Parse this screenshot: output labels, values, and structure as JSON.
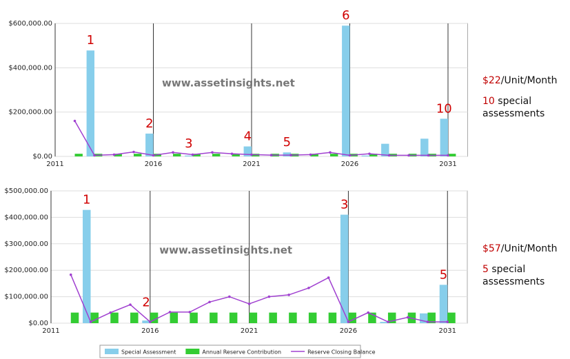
{
  "chart_data": [
    {
      "type": "bar_line",
      "x": [
        2012,
        2013,
        2014,
        2015,
        2016,
        2017,
        2018,
        2019,
        2020,
        2021,
        2022,
        2023,
        2024,
        2025,
        2026,
        2027,
        2028,
        2029,
        2030,
        2031
      ],
      "xlim": [
        2011,
        2032
      ],
      "xticks": [
        2011,
        2016,
        2021,
        2026,
        2031
      ],
      "ylim": [
        0,
        600000
      ],
      "yticks": [
        {
          "value": 0,
          "label": "$0.00"
        },
        {
          "value": 200000,
          "label": "$200,000.00"
        },
        {
          "value": 400000,
          "label": "$400,000.00"
        },
        {
          "value": 600000,
          "label": "$600,000.00"
        }
      ],
      "grid": true,
      "watermark": "www.assetinsights.net",
      "series": [
        {
          "name": "Special Assessment",
          "color": "#87ceeb",
          "kind": "bar",
          "values": [
            0,
            478000,
            0,
            0,
            103000,
            0,
            4000,
            0,
            0,
            45000,
            0,
            18000,
            0,
            0,
            590000,
            4000,
            57000,
            0,
            80000,
            170000
          ]
        },
        {
          "name": "Annual Reserve Contribution",
          "color": "#33cc33",
          "kind": "bar",
          "values": [
            12000,
            12000,
            12000,
            12000,
            12000,
            12000,
            12000,
            12000,
            12000,
            12000,
            12000,
            12000,
            12000,
            12000,
            12000,
            12000,
            12000,
            12000,
            12000,
            12000
          ]
        },
        {
          "name": "Reserve Closing Balance",
          "color": "#a040d0",
          "kind": "line",
          "values": [
            160000,
            5000,
            8000,
            20000,
            5000,
            18000,
            8000,
            18000,
            12000,
            8000,
            6000,
            6000,
            8000,
            18000,
            5000,
            12000,
            5000,
            5000,
            5000,
            5000
          ]
        }
      ],
      "annotations": [
        {
          "text": "1",
          "x": 2013
        },
        {
          "text": "2",
          "x": 2016
        },
        {
          "text": "3",
          "x": 2018
        },
        {
          "text": "4",
          "x": 2021
        },
        {
          "text": "5",
          "x": 2023
        },
        {
          "text": "6",
          "x": 2026
        },
        {
          "text": "10",
          "x": 2031
        }
      ],
      "note": {
        "amount": "$22",
        "unit": "/Unit/Month",
        "count": "10",
        "text": "special assessments"
      }
    },
    {
      "type": "bar_line",
      "x": [
        2012,
        2013,
        2014,
        2015,
        2016,
        2017,
        2018,
        2019,
        2020,
        2021,
        2022,
        2023,
        2024,
        2025,
        2026,
        2027,
        2028,
        2029,
        2030,
        2031
      ],
      "xlim": [
        2011,
        2032
      ],
      "xticks": [
        2011,
        2016,
        2021,
        2026,
        2031
      ],
      "ylim": [
        0,
        500000
      ],
      "yticks": [
        {
          "value": 0,
          "label": "$0.00"
        },
        {
          "value": 100000,
          "label": "$100,000.00"
        },
        {
          "value": 200000,
          "label": "$200,000.00"
        },
        {
          "value": 300000,
          "label": "$300,000.00"
        },
        {
          "value": 400000,
          "label": "$400,000.00"
        },
        {
          "value": 500000,
          "label": "$500,000.00"
        }
      ],
      "grid": true,
      "watermark": "www.assetinsights.net",
      "series": [
        {
          "color": "#87ceeb",
          "kind": "bar",
          "values": [
            0,
            428000,
            0,
            0,
            10000,
            0,
            0,
            0,
            0,
            0,
            0,
            0,
            0,
            0,
            410000,
            0,
            5000,
            0,
            37000,
            145000
          ]
        },
        {
          "color": "#33cc33",
          "kind": "bar",
          "values": [
            40000,
            40000,
            40000,
            40000,
            40000,
            40000,
            40000,
            40000,
            40000,
            40000,
            40000,
            40000,
            40000,
            40000,
            40000,
            40000,
            40000,
            40000,
            40000,
            40000
          ]
        },
        {
          "color": "#a040d0",
          "kind": "line",
          "values": [
            183000,
            5000,
            40000,
            70000,
            5000,
            42000,
            42000,
            80000,
            100000,
            73000,
            100000,
            107000,
            133000,
            172000,
            5000,
            40000,
            5000,
            22000,
            5000,
            5000
          ]
        }
      ],
      "annotations": [
        {
          "text": "1",
          "x": 2013
        },
        {
          "text": "2",
          "x": 2016
        },
        {
          "text": "3",
          "x": 2026
        },
        {
          "text": "5",
          "x": 2031
        }
      ],
      "note": {
        "amount": "$57",
        "unit": "/Unit/Month",
        "count": "5",
        "text": "special assessments"
      }
    }
  ]
}
